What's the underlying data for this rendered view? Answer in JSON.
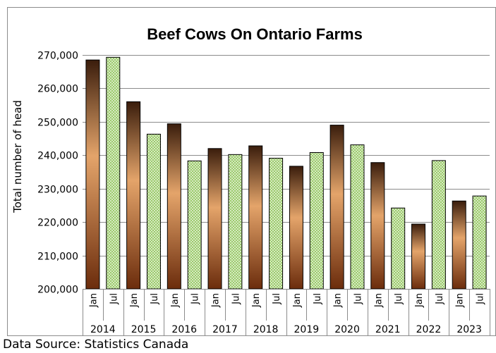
{
  "chart_data": {
    "type": "bar",
    "title": "Beef Cows On Ontario Farms",
    "ylabel": "Total number of head",
    "xlabel": "",
    "ylim": [
      200000,
      270000
    ],
    "yticks": [
      200000,
      210000,
      220000,
      230000,
      240000,
      250000,
      260000,
      270000
    ],
    "ytick_labels": [
      "200,000",
      "210,000",
      "220,000",
      "230,000",
      "240,000",
      "250,000",
      "260,000",
      "270,000"
    ],
    "grid": true,
    "legend": "none",
    "years": [
      "2014",
      "2015",
      "2016",
      "2017",
      "2018",
      "2019",
      "2020",
      "2021",
      "2022",
      "2023"
    ],
    "months": [
      "Jan",
      "Jul"
    ],
    "categories": [
      "2014 Jan",
      "2014 Jul",
      "2015 Jan",
      "2015 Jul",
      "2016 Jan",
      "2016 Jul",
      "2017 Jan",
      "2017 Jul",
      "2018 Jan",
      "2018 Jul",
      "2019 Jan",
      "2019 Jul",
      "2020 Jan",
      "2020 Jul",
      "2021 Jan",
      "2021 Jul",
      "2022 Jan",
      "2022 Jul",
      "2023 Jan",
      "2023 Jul"
    ],
    "values": [
      268500,
      269300,
      256000,
      246300,
      249400,
      238300,
      242000,
      240200,
      242800,
      239100,
      236700,
      240800,
      249000,
      243100,
      237800,
      224200,
      219400,
      238400,
      226300,
      227800
    ],
    "colors": {
      "jan_dark": "#3a1d0c",
      "jan_light": "#e4a46a",
      "jul_fill": "#9ccb6c",
      "jul_dot": "#ffffff",
      "grid": "#8c8c8c"
    }
  },
  "source_note": "Data Source: Statistics Canada"
}
